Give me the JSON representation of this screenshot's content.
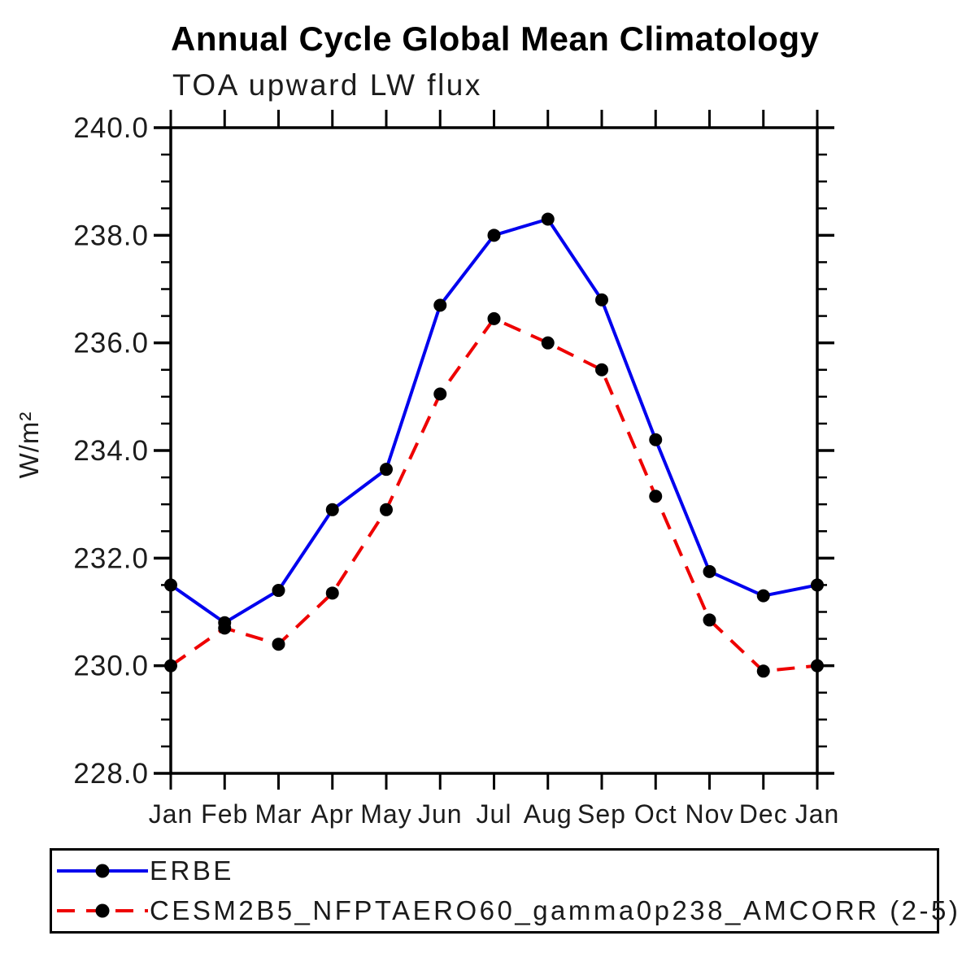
{
  "page": {
    "background": "#ffffff"
  },
  "chart_data": {
    "type": "line",
    "title": "Annual Cycle Global Mean Climatology",
    "subtitle": "TOA upward LW flux",
    "ylabel": "W/m²",
    "xlabel": "",
    "categories": [
      "Jan",
      "Feb",
      "Mar",
      "Apr",
      "May",
      "Jun",
      "Jul",
      "Aug",
      "Sep",
      "Oct",
      "Nov",
      "Dec",
      "Jan"
    ],
    "ylim": [
      228.0,
      240.0
    ],
    "ytick_step": 2.0,
    "yminor_step": 0.5,
    "ytick_labels": [
      "228.0",
      "230.0",
      "232.0",
      "234.0",
      "236.0",
      "238.0",
      "240.0"
    ],
    "grid": false,
    "legend_position": "bottom-left-box",
    "series": [
      {
        "name": "ERBE",
        "color": "#0000ee",
        "style": "solid",
        "marker": "circle",
        "marker_color": "#000000",
        "values": [
          231.5,
          230.8,
          231.4,
          232.9,
          233.65,
          236.7,
          238.0,
          238.3,
          236.8,
          234.2,
          231.75,
          231.3,
          231.5
        ]
      },
      {
        "name": "CESM2B5_NFPTAERO60_gamma0p238_AMCORR (2-5)",
        "color": "#ee0000",
        "style": "dashed",
        "marker": "circle",
        "marker_color": "#000000",
        "values": [
          230.0,
          230.7,
          230.4,
          231.35,
          232.9,
          235.05,
          236.45,
          236.0,
          235.5,
          233.15,
          230.85,
          229.9,
          230.0
        ]
      }
    ]
  }
}
